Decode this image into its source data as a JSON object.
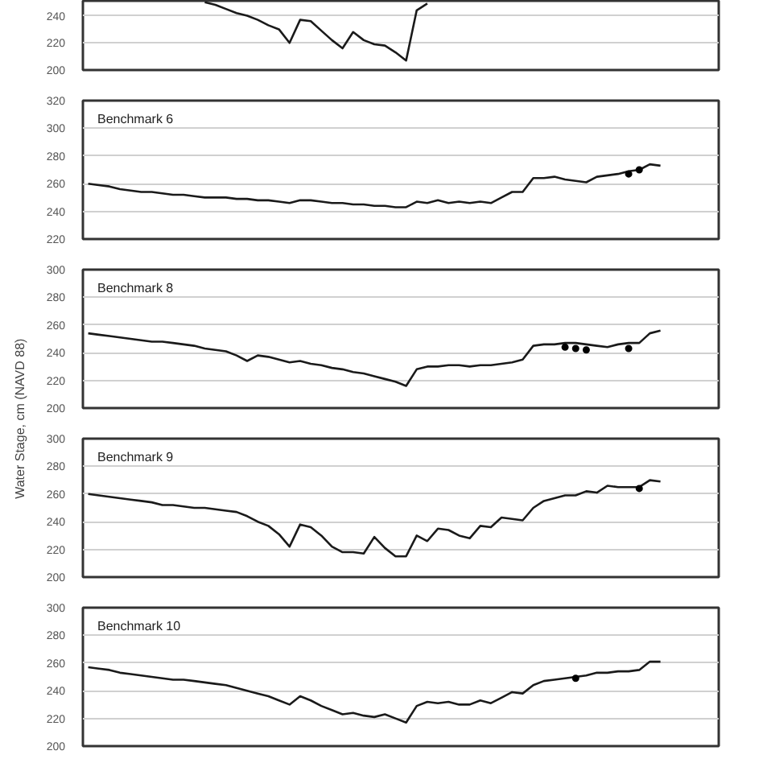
{
  "chart_data": [
    {
      "type": "line",
      "categories": [
        null,
        null,
        null,
        null,
        null,
        null,
        null,
        null,
        null,
        null,
        null,
        null,
        null,
        null,
        null,
        null,
        null,
        null,
        null,
        null,
        null,
        null,
        null,
        null,
        null,
        null,
        null,
        null,
        null,
        null,
        null,
        null,
        null,
        null,
        null,
        null,
        null,
        null,
        null,
        null,
        null,
        null,
        null,
        null,
        null,
        null,
        null,
        null,
        null,
        null,
        null,
        null,
        null,
        null,
        null,
        null,
        null,
        null,
        null,
        null
      ],
      "ylim": [
        200,
        251
      ],
      "yticks": [
        200,
        220,
        240
      ],
      "grid": "y",
      "tick_labels": "y",
      "series": [
        {
          "color": "#1a1a1a",
          "values": [
            null,
            null,
            null,
            null,
            null,
            null,
            null,
            null,
            null,
            null,
            null,
            250,
            248,
            245,
            242,
            240,
            237,
            233,
            230,
            220,
            237,
            236,
            229,
            222,
            216,
            228,
            222,
            219,
            218,
            213,
            207,
            244,
            249,
            null,
            null,
            null,
            null,
            null,
            null,
            null,
            null,
            null,
            null,
            null,
            null,
            null,
            null,
            null,
            null,
            null,
            null,
            null,
            null,
            null,
            null,
            null,
            null,
            null,
            null,
            null
          ]
        }
      ]
    },
    {
      "type": "line",
      "title": "Benchmark 6",
      "categories": [
        null,
        null,
        null,
        null,
        null,
        null,
        null,
        null,
        null,
        null,
        null,
        null,
        null,
        null,
        null,
        null,
        null,
        null,
        null,
        null,
        null,
        null,
        null,
        null,
        null,
        null,
        null,
        null,
        null,
        null,
        null,
        null,
        null,
        null,
        null,
        null,
        null,
        null,
        null,
        null,
        null,
        null,
        null,
        null,
        null,
        null,
        null,
        null,
        null,
        null,
        null,
        null,
        null,
        null,
        null,
        null,
        null,
        null,
        null,
        null
      ],
      "ylim": [
        220,
        320
      ],
      "yticks": [
        220,
        240,
        260,
        280,
        300,
        320
      ],
      "grid": "y",
      "tick_labels": "y",
      "series": [
        {
          "color": "#1a1a1a",
          "values": [
            260,
            259,
            258,
            256,
            255,
            254,
            254,
            253,
            252,
            252,
            251,
            250,
            250,
            250,
            249,
            249,
            248,
            248,
            247,
            246,
            248,
            248,
            247,
            246,
            246,
            245,
            245,
            244,
            244,
            243,
            243,
            247,
            246,
            248,
            246,
            247,
            246,
            247,
            246,
            250,
            254,
            254,
            264,
            264,
            265,
            263,
            262,
            261,
            265,
            266,
            267,
            269,
            270,
            274,
            273,
            null,
            null,
            null,
            null,
            null
          ]
        },
        {
          "type": "scatter",
          "marker": "circle",
          "color": "#000000",
          "values": [
            null,
            null,
            null,
            null,
            null,
            null,
            null,
            null,
            null,
            null,
            null,
            null,
            null,
            null,
            null,
            null,
            null,
            null,
            null,
            null,
            null,
            null,
            null,
            null,
            null,
            null,
            null,
            null,
            null,
            null,
            null,
            null,
            null,
            null,
            null,
            null,
            null,
            null,
            null,
            null,
            null,
            null,
            null,
            null,
            null,
            null,
            null,
            null,
            null,
            null,
            null,
            267,
            270,
            null,
            null,
            null,
            null,
            null,
            null,
            null
          ]
        }
      ]
    },
    {
      "type": "line",
      "title": "Benchmark 8",
      "ylabel": "Water Stage, cm (NAVD 88)",
      "categories": [
        null,
        null,
        null,
        null,
        null,
        null,
        null,
        null,
        null,
        null,
        null,
        null,
        null,
        null,
        null,
        null,
        null,
        null,
        null,
        null,
        null,
        null,
        null,
        null,
        null,
        null,
        null,
        null,
        null,
        null,
        null,
        null,
        null,
        null,
        null,
        null,
        null,
        null,
        null,
        null,
        null,
        null,
        null,
        null,
        null,
        null,
        null,
        null,
        null,
        null,
        null,
        null,
        null,
        null,
        null,
        null,
        null,
        null,
        null,
        null
      ],
      "ylim": [
        200,
        300
      ],
      "yticks": [
        200,
        220,
        240,
        260,
        280,
        300
      ],
      "grid": "y",
      "tick_labels": "y",
      "series": [
        {
          "color": "#1a1a1a",
          "values": [
            254,
            253,
            252,
            251,
            250,
            249,
            248,
            248,
            247,
            246,
            245,
            243,
            242,
            241,
            238,
            234,
            238,
            237,
            235,
            233,
            234,
            232,
            231,
            229,
            228,
            226,
            225,
            223,
            221,
            219,
            216,
            228,
            230,
            230,
            231,
            231,
            230,
            231,
            231,
            232,
            233,
            235,
            245,
            246,
            246,
            247,
            247,
            246,
            245,
            244,
            246,
            247,
            247,
            254,
            256,
            null,
            null,
            null,
            null,
            null
          ]
        },
        {
          "type": "scatter",
          "marker": "circle",
          "color": "#000000",
          "values": [
            null,
            null,
            null,
            null,
            null,
            null,
            null,
            null,
            null,
            null,
            null,
            null,
            null,
            null,
            null,
            null,
            null,
            null,
            null,
            null,
            null,
            null,
            null,
            null,
            null,
            null,
            null,
            null,
            null,
            null,
            null,
            null,
            null,
            null,
            null,
            null,
            null,
            null,
            null,
            null,
            null,
            null,
            null,
            null,
            null,
            244,
            243,
            242,
            null,
            null,
            null,
            243,
            null,
            null,
            null,
            null,
            null,
            null,
            null,
            null
          ]
        }
      ]
    },
    {
      "type": "line",
      "title": "Benchmark 9",
      "categories": [
        null,
        null,
        null,
        null,
        null,
        null,
        null,
        null,
        null,
        null,
        null,
        null,
        null,
        null,
        null,
        null,
        null,
        null,
        null,
        null,
        null,
        null,
        null,
        null,
        null,
        null,
        null,
        null,
        null,
        null,
        null,
        null,
        null,
        null,
        null,
        null,
        null,
        null,
        null,
        null,
        null,
        null,
        null,
        null,
        null,
        null,
        null,
        null,
        null,
        null,
        null,
        null,
        null,
        null,
        null,
        null,
        null,
        null,
        null,
        null
      ],
      "ylim": [
        200,
        300
      ],
      "yticks": [
        200,
        220,
        240,
        260,
        280,
        300
      ],
      "grid": "y",
      "tick_labels": "y",
      "series": [
        {
          "color": "#1a1a1a",
          "values": [
            260,
            259,
            258,
            257,
            256,
            255,
            254,
            252,
            252,
            251,
            250,
            250,
            249,
            248,
            247,
            244,
            240,
            237,
            231,
            222,
            238,
            236,
            230,
            222,
            218,
            218,
            217,
            229,
            221,
            215,
            215,
            230,
            226,
            235,
            234,
            230,
            228,
            237,
            236,
            243,
            242,
            241,
            250,
            255,
            257,
            259,
            259,
            262,
            261,
            266,
            265,
            265,
            265,
            270,
            269,
            null,
            null,
            null,
            null,
            null
          ]
        },
        {
          "type": "scatter",
          "marker": "circle",
          "color": "#000000",
          "values": [
            null,
            null,
            null,
            null,
            null,
            null,
            null,
            null,
            null,
            null,
            null,
            null,
            null,
            null,
            null,
            null,
            null,
            null,
            null,
            null,
            null,
            null,
            null,
            null,
            null,
            null,
            null,
            null,
            null,
            null,
            null,
            null,
            null,
            null,
            null,
            null,
            null,
            null,
            null,
            null,
            null,
            null,
            null,
            null,
            null,
            null,
            null,
            null,
            null,
            null,
            null,
            null,
            264,
            null,
            null,
            null,
            null,
            null,
            null,
            null
          ]
        }
      ]
    },
    {
      "type": "line",
      "title": "Benchmark 10",
      "categories": [
        null,
        null,
        null,
        null,
        null,
        null,
        null,
        null,
        null,
        null,
        null,
        null,
        null,
        null,
        null,
        null,
        null,
        null,
        null,
        null,
        null,
        null,
        null,
        null,
        null,
        null,
        null,
        null,
        null,
        null,
        null,
        null,
        null,
        null,
        null,
        null,
        null,
        null,
        null,
        null,
        null,
        null,
        null,
        null,
        null,
        null,
        null,
        null,
        null,
        null,
        null,
        null,
        null,
        null,
        null,
        null,
        null,
        null,
        null,
        null
      ],
      "ylim": [
        200,
        300
      ],
      "yticks": [
        200,
        220,
        240,
        260,
        280,
        300
      ],
      "grid": "y",
      "tick_labels": "y",
      "series": [
        {
          "color": "#1a1a1a",
          "values": [
            257,
            256,
            255,
            253,
            252,
            251,
            250,
            249,
            248,
            248,
            247,
            246,
            245,
            244,
            242,
            240,
            238,
            236,
            233,
            230,
            236,
            233,
            229,
            226,
            223,
            224,
            222,
            221,
            223,
            220,
            217,
            229,
            232,
            231,
            232,
            230,
            230,
            233,
            231,
            235,
            239,
            238,
            244,
            247,
            248,
            249,
            250,
            251,
            253,
            253,
            254,
            254,
            255,
            261,
            261,
            null,
            null,
            null,
            null,
            null
          ]
        },
        {
          "type": "scatter",
          "marker": "circle",
          "color": "#000000",
          "values": [
            null,
            null,
            null,
            null,
            null,
            null,
            null,
            null,
            null,
            null,
            null,
            null,
            null,
            null,
            null,
            null,
            null,
            null,
            null,
            null,
            null,
            null,
            null,
            null,
            null,
            null,
            null,
            null,
            null,
            null,
            null,
            null,
            null,
            null,
            null,
            null,
            null,
            null,
            null,
            null,
            null,
            null,
            null,
            null,
            null,
            null,
            249,
            null,
            null,
            null,
            null,
            null,
            null,
            null,
            null,
            null,
            null,
            null,
            null,
            null
          ]
        }
      ]
    }
  ]
}
